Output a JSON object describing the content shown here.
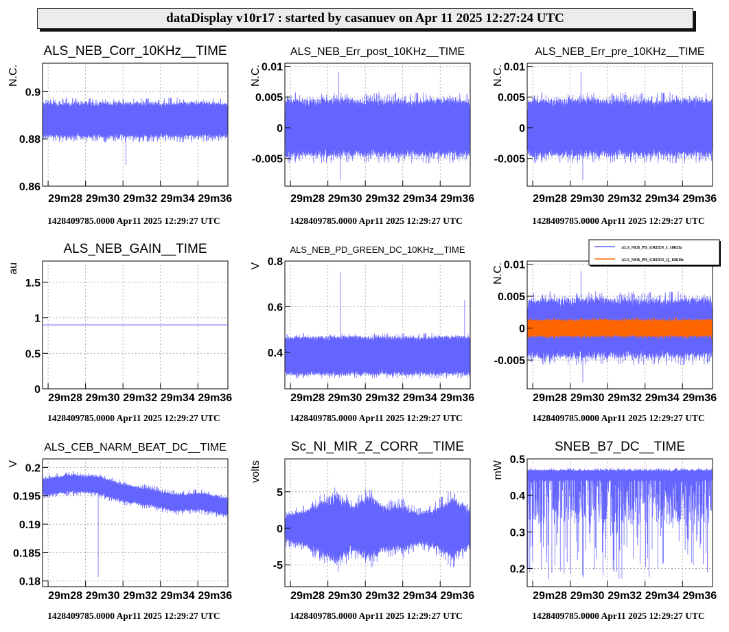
{
  "header": {
    "title": "dataDisplay v10r17 : started by casanuev on Apr 11 2025 12:27:24 UTC"
  },
  "colors": {
    "trace": "#6464ff",
    "trace2": "#ff6600",
    "grid": "#999999"
  },
  "chart_data": [
    {
      "type": "line",
      "title": "ALS_NEB_Corr_10KHz__TIME",
      "ylabel": "N.C.",
      "ylim": [
        0.86,
        0.912
      ],
      "yticks": [
        0.86,
        0.88,
        0.9
      ],
      "yticklabels": [
        "0.86",
        "0.88",
        "0.9"
      ],
      "xticklabels": [
        "29m28",
        "29m30",
        "29m32",
        "29m34",
        "29m36"
      ],
      "footer": "1428409785.0000 Apr11 2025 12:29:27 UTC",
      "series": [
        {
          "color": "#6464ff",
          "center": 0.888,
          "band": 0.006,
          "spread": 0.0095,
          "spikes": [
            [
              0.45,
              0.869
            ]
          ]
        }
      ]
    },
    {
      "type": "line",
      "title": "ALS_NEB_Err_post_10KHz__TIME",
      "ylabel": "N.C.",
      "ylim": [
        -0.0095,
        0.0105
      ],
      "yticks": [
        -0.005,
        0,
        0.005,
        0.01
      ],
      "yticklabels": [
        "-0.005",
        "0",
        "0.005",
        "0.01"
      ],
      "xticklabels": [
        "29m28",
        "29m30",
        "29m32",
        "29m34",
        "29m36"
      ],
      "footer": "1428409785.0000 Apr11 2025 12:29:27 UTC",
      "series": [
        {
          "color": "#6464ff",
          "center": 0,
          "band": 0.0038,
          "spread": 0.0058,
          "spikes": [
            [
              0.29,
              0.009
            ],
            [
              0.3,
              -0.0085
            ]
          ]
        }
      ]
    },
    {
      "type": "line",
      "title": "ALS_NEB_Err_pre_10KHz__TIME",
      "ylabel": "N.C.",
      "ylim": [
        -0.0095,
        0.0105
      ],
      "yticks": [
        -0.005,
        0,
        0.005,
        0.01
      ],
      "yticklabels": [
        "-0.005",
        "0",
        "0.005",
        "0.01"
      ],
      "xticklabels": [
        "29m28",
        "29m30",
        "29m32",
        "29m34",
        "29m36"
      ],
      "footer": "1428409785.0000 Apr11 2025 12:29:27 UTC",
      "series": [
        {
          "color": "#6464ff",
          "center": 0,
          "band": 0.0038,
          "spread": 0.0058,
          "spikes": [
            [
              0.29,
              0.009
            ],
            [
              0.3,
              -0.0085
            ]
          ]
        }
      ]
    },
    {
      "type": "line",
      "title": "ALS_NEB_GAIN__TIME",
      "ylabel": "au",
      "ylim": [
        0,
        1.8
      ],
      "yticks": [
        0,
        0.5,
        1,
        1.5
      ],
      "yticklabels": [
        "0",
        "0.5",
        "1",
        "1.5"
      ],
      "xticklabels": [
        "29m28",
        "29m30",
        "29m32",
        "29m34",
        "29m36"
      ],
      "footer": "1428409785.0000 Apr11 2025 12:29:27 UTC",
      "series": [
        {
          "color": "#6464ff",
          "constant": 0.9
        }
      ]
    },
    {
      "type": "line",
      "title": "ALS_NEB_PD_GREEN_DC_10KHz__TIME",
      "ylabel": "V",
      "ylim": [
        0.24,
        0.8
      ],
      "yticks": [
        0.4,
        0.6,
        0.8
      ],
      "yticklabels": [
        "0.4",
        "0.6",
        "0.8"
      ],
      "xticklabels": [
        "29m28",
        "29m30",
        "29m32",
        "29m34",
        "29m36"
      ],
      "footer": "1428409785.0000 Apr11 2025 12:29:27 UTC",
      "series": [
        {
          "color": "#6464ff",
          "center": 0.385,
          "band": 0.075,
          "spread": 0.1,
          "spikes": [
            [
              0.3,
              0.75
            ],
            [
              0.97,
              0.63
            ]
          ]
        }
      ]
    },
    {
      "type": "line",
      "title": "",
      "ylabel": "N.C.",
      "ylim": [
        -0.0095,
        0.0105
      ],
      "yticks": [
        -0.005,
        0,
        0.005,
        0.01
      ],
      "yticklabels": [
        "-0.005",
        "0",
        "0.005",
        "0.01"
      ],
      "xticklabels": [
        "29m28",
        "29m30",
        "29m32",
        "29m34",
        "29m36"
      ],
      "footer": "1428409785.0000 Apr11 2025 12:29:27 UTC",
      "legend": [
        "ALS_NEB_PD_GREEN_I_10KHz",
        "ALS_NEB_PD_GREEN_Q_10KHz"
      ],
      "series": [
        {
          "name": "ALS_NEB_PD_GREEN_I_10KHz",
          "color": "#6464ff",
          "center": 0,
          "band": 0.0038,
          "spread": 0.0058,
          "spikes": [
            [
              0.29,
              0.009
            ],
            [
              0.3,
              -0.0085
            ]
          ]
        },
        {
          "name": "ALS_NEB_PD_GREEN_Q_10KHz",
          "color": "#ff6600",
          "center": 0,
          "band": 0.0011,
          "spread": 0.0017
        }
      ]
    },
    {
      "type": "line",
      "title": "ALS_CEB_NARM_BEAT_DC__TIME",
      "ylabel": "V",
      "ylim": [
        0.179,
        0.2015
      ],
      "yticks": [
        0.18,
        0.185,
        0.19,
        0.195,
        0.2
      ],
      "yticklabels": [
        "0.18",
        "0.185",
        "0.19",
        "0.195",
        "0.2"
      ],
      "xticklabels": [
        "29m28",
        "29m30",
        "29m32",
        "29m34",
        "29m36"
      ],
      "footer": "1428409785.0000 Apr11 2025 12:29:27 UTC",
      "series": [
        {
          "color": "#6464ff",
          "trend": [
            0.1965,
            0.1972,
            0.197,
            0.1955,
            0.1948,
            0.1938,
            0.194,
            0.193
          ],
          "band": 0.0011,
          "spread": 0.0022,
          "spikes": [
            [
              0.3,
              0.1807
            ]
          ]
        }
      ]
    },
    {
      "type": "line",
      "title": "Sc_NI_MIR_Z_CORR__TIME",
      "ylabel": "volts",
      "ylim": [
        -8,
        9.5
      ],
      "yticks": [
        -5,
        0,
        5
      ],
      "yticklabels": [
        "-5",
        "0",
        "5"
      ],
      "xticklabels": [
        "29m28",
        "29m30",
        "29m32",
        "29m34",
        "29m36"
      ],
      "footer": "1428409785.0000 Apr11 2025 12:29:27 UTC",
      "series": [
        {
          "color": "#6464ff",
          "envelope": [
            2.5,
            3.2,
            4.5,
            6.5,
            4,
            5.8,
            4,
            4.2,
            2.8,
            3.8,
            5.5,
            3.5
          ],
          "bandRatio": 0.55
        }
      ]
    },
    {
      "type": "line",
      "title": "SNEB_B7_DC__TIME",
      "ylabel": "mW",
      "ylim": [
        0.15,
        0.5
      ],
      "yticks": [
        0.2,
        0.3,
        0.4,
        0.5
      ],
      "yticklabels": [
        "0.2",
        "0.3",
        "0.4",
        "0.5"
      ],
      "xticklabels": [
        "29m28",
        "29m30",
        "29m32",
        "29m34",
        "29m36"
      ],
      "footer": "1428409785.0000 Apr11 2025 12:29:27 UTC",
      "series": [
        {
          "color": "#6464ff",
          "center": 0.455,
          "band": 0.012,
          "spread": 0.02,
          "drops": 0.22,
          "dropMin": 0.17
        }
      ]
    }
  ]
}
